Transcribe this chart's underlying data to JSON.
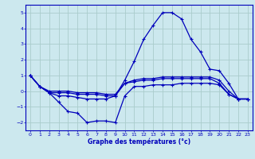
{
  "title": "Graphe des températures (°c)",
  "bg_color": "#cce8ee",
  "grid_color": "#aacccc",
  "line_color": "#0000bb",
  "xlim": [
    -0.5,
    23.5
  ],
  "ylim": [
    -2.5,
    5.5
  ],
  "yticks": [
    -2,
    -1,
    0,
    1,
    2,
    3,
    4,
    5
  ],
  "xticks": [
    0,
    1,
    2,
    3,
    4,
    5,
    6,
    7,
    8,
    9,
    10,
    11,
    12,
    13,
    14,
    15,
    16,
    17,
    18,
    19,
    20,
    21,
    22,
    23
  ],
  "series": [
    {
      "x": [
        0,
        1,
        2,
        3,
        4,
        5,
        6,
        7,
        8,
        9,
        10,
        11,
        12,
        13,
        14,
        15,
        16,
        17,
        18,
        19,
        20,
        21,
        22,
        23
      ],
      "y": [
        1.0,
        0.3,
        -0.1,
        -0.7,
        -1.3,
        -1.4,
        -2.0,
        -1.9,
        -1.9,
        -2.0,
        -0.3,
        0.3,
        0.3,
        0.4,
        0.4,
        0.4,
        0.5,
        0.5,
        0.5,
        0.5,
        0.4,
        -0.2,
        -0.5,
        -0.5
      ]
    },
    {
      "x": [
        0,
        1,
        2,
        3,
        4,
        5,
        6,
        7,
        8,
        9,
        10,
        11,
        12,
        13,
        14,
        15,
        16,
        17,
        18,
        19,
        20,
        21,
        22,
        23
      ],
      "y": [
        1.0,
        0.3,
        -0.1,
        -0.1,
        -0.1,
        -0.2,
        -0.2,
        -0.2,
        -0.3,
        -0.3,
        0.7,
        1.9,
        3.3,
        4.2,
        5.0,
        5.0,
        4.6,
        3.3,
        2.5,
        1.4,
        1.3,
        0.5,
        -0.5,
        -0.5
      ]
    },
    {
      "x": [
        0,
        1,
        2,
        3,
        4,
        5,
        6,
        7,
        8,
        9,
        10,
        11,
        12,
        13,
        14,
        15,
        16,
        17,
        18,
        19,
        20,
        21,
        22,
        23
      ],
      "y": [
        1.0,
        0.3,
        0.0,
        0.0,
        0.0,
        -0.1,
        -0.1,
        -0.1,
        -0.2,
        -0.2,
        0.5,
        0.7,
        0.8,
        0.8,
        0.9,
        0.9,
        0.9,
        0.9,
        0.9,
        0.9,
        0.7,
        0.0,
        -0.5,
        -0.5
      ]
    },
    {
      "x": [
        0,
        1,
        2,
        3,
        4,
        5,
        6,
        7,
        8,
        9,
        10,
        11,
        12,
        13,
        14,
        15,
        16,
        17,
        18,
        19,
        20,
        21,
        22,
        23
      ],
      "y": [
        1.0,
        0.3,
        -0.1,
        -0.3,
        -0.3,
        -0.4,
        -0.5,
        -0.5,
        -0.5,
        -0.3,
        0.5,
        0.6,
        0.7,
        0.7,
        0.8,
        0.8,
        0.8,
        0.8,
        0.8,
        0.8,
        0.5,
        -0.2,
        -0.5,
        -0.5
      ]
    }
  ]
}
